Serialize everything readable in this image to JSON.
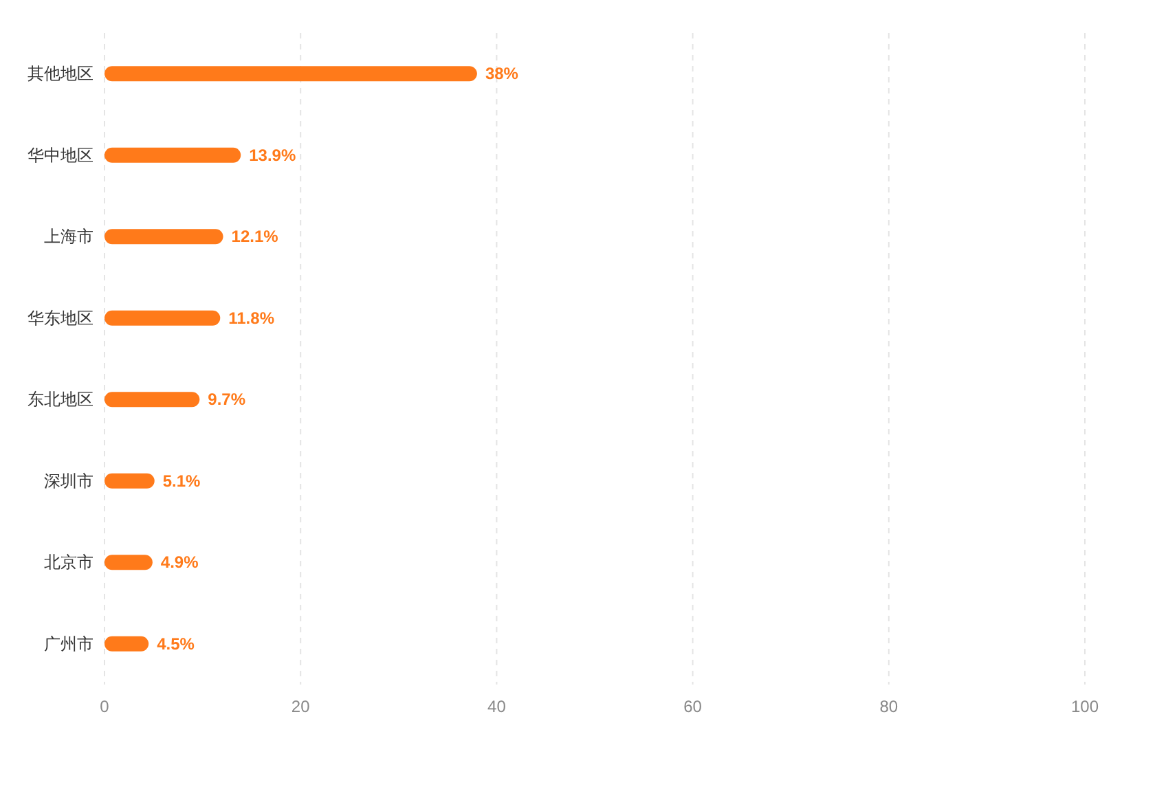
{
  "chart_data": {
    "type": "bar",
    "orientation": "horizontal",
    "categories": [
      "其他地区",
      "华中地区",
      "上海市",
      "华东地区",
      "东北地区",
      "深圳市",
      "北京市",
      "广州市"
    ],
    "values": [
      38,
      13.9,
      12.1,
      11.8,
      9.7,
      5.1,
      4.9,
      4.5
    ],
    "value_labels": [
      "38%",
      "13.9%",
      "12.1%",
      "11.8%",
      "9.7%",
      "5.1%",
      "4.9%",
      "4.5%"
    ],
    "color": "#ff7a1a",
    "xlim": [
      0,
      100
    ],
    "xticks": [
      0,
      20,
      40,
      60,
      80,
      100
    ],
    "grid": "x"
  }
}
